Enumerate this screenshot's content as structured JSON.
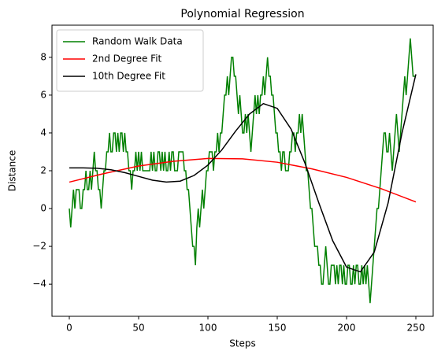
{
  "chart_data": {
    "type": "line",
    "title": "Polynomial Regression",
    "x_label": "Steps",
    "y_label": "Distance",
    "xlim": [
      -12.5,
      262.5
    ],
    "ylim": [
      -5.7,
      9.7
    ],
    "xticks": [
      0,
      50,
      100,
      150,
      200,
      250
    ],
    "yticks": [
      {
        "value": -4,
        "label": "−4"
      },
      {
        "value": -2,
        "label": "−2"
      },
      0,
      2,
      4,
      6,
      8
    ],
    "legend": "upper left",
    "series": [
      {
        "name": "Random Walk Data",
        "color": "#008000",
        "x": [
          0,
          1,
          2,
          3,
          4,
          5,
          6,
          7,
          8,
          9,
          10,
          11,
          12,
          13,
          14,
          15,
          16,
          17,
          18,
          19,
          20,
          21,
          22,
          23,
          24,
          25,
          26,
          27,
          28,
          29,
          30,
          31,
          32,
          33,
          34,
          35,
          36,
          37,
          38,
          39,
          40,
          41,
          42,
          43,
          44,
          45,
          46,
          47,
          48,
          49,
          50,
          51,
          52,
          53,
          54,
          55,
          56,
          57,
          58,
          59,
          60,
          61,
          62,
          63,
          64,
          65,
          66,
          67,
          68,
          69,
          70,
          71,
          72,
          73,
          74,
          75,
          76,
          77,
          78,
          79,
          80,
          81,
          82,
          83,
          84,
          85,
          86,
          87,
          88,
          89,
          90,
          91,
          92,
          93,
          94,
          95,
          96,
          97,
          98,
          99,
          100,
          101,
          102,
          103,
          104,
          105,
          106,
          107,
          108,
          109,
          110,
          111,
          112,
          113,
          114,
          115,
          116,
          117,
          118,
          119,
          120,
          121,
          122,
          123,
          124,
          125,
          126,
          127,
          128,
          129,
          130,
          131,
          132,
          133,
          134,
          135,
          136,
          137,
          138,
          139,
          140,
          141,
          142,
          143,
          144,
          145,
          146,
          147,
          148,
          149,
          150,
          151,
          152,
          153,
          154,
          155,
          156,
          157,
          158,
          159,
          160,
          161,
          162,
          163,
          164,
          165,
          166,
          167,
          168,
          169,
          170,
          171,
          172,
          173,
          174,
          175,
          176,
          177,
          178,
          179,
          180,
          181,
          182,
          183,
          184,
          185,
          186,
          187,
          188,
          189,
          190,
          191,
          192,
          193,
          194,
          195,
          196,
          197,
          198,
          199,
          200,
          201,
          202,
          203,
          204,
          205,
          206,
          207,
          208,
          209,
          210,
          211,
          212,
          213,
          214,
          215,
          216,
          217,
          218,
          219,
          220,
          221,
          222,
          223,
          224,
          225,
          226,
          227,
          228,
          229,
          230,
          231,
          232,
          233,
          234,
          235,
          236,
          237,
          238,
          239,
          240,
          241,
          242,
          243,
          244,
          245,
          246,
          247,
          248,
          249,
          250
        ],
        "values": [
          0,
          -1,
          0,
          1,
          0,
          1,
          1,
          1,
          0,
          0,
          1,
          1,
          2,
          1,
          1,
          2,
          1,
          2,
          3,
          2,
          2,
          1,
          1,
          0,
          1,
          2,
          2,
          3,
          3,
          4,
          3,
          3,
          4,
          4,
          3,
          4,
          3,
          4,
          4,
          3,
          4,
          3,
          3,
          2,
          2,
          1,
          2,
          2,
          3,
          2,
          3,
          2,
          3,
          2,
          2,
          2,
          2,
          2,
          2,
          3,
          2,
          3,
          2,
          2,
          3,
          3,
          2,
          3,
          2,
          3,
          2,
          2,
          3,
          2,
          3,
          3,
          2,
          2,
          2,
          3,
          3,
          3,
          3,
          2,
          2,
          1,
          1,
          0,
          -1,
          -2,
          -2,
          -3,
          -1,
          0,
          -1,
          0,
          1,
          0,
          1,
          2,
          2,
          3,
          3,
          3,
          2,
          3,
          3,
          4,
          3,
          4,
          4,
          5,
          6,
          6,
          7,
          6,
          7,
          8,
          8,
          7,
          7,
          6,
          5,
          6,
          5,
          4,
          4,
          5,
          4,
          5,
          4,
          3,
          4,
          5,
          6,
          5,
          6,
          5,
          6,
          6,
          7,
          6,
          7,
          8,
          7,
          7,
          6,
          6,
          5,
          4,
          4,
          3,
          3,
          2,
          3,
          3,
          2,
          2,
          2,
          3,
          3,
          4,
          4,
          3,
          4,
          4,
          5,
          4,
          5,
          4,
          3,
          2,
          2,
          1,
          0,
          0,
          -1,
          -2,
          -2,
          -2,
          -3,
          -3,
          -4,
          -4,
          -3,
          -2,
          -3,
          -4,
          -4,
          -3,
          -3,
          -3,
          -4,
          -3,
          -4,
          -3,
          -3,
          -4,
          -3,
          -4,
          -4,
          -3,
          -3,
          -4,
          -4,
          -3,
          -4,
          -3,
          -3,
          -4,
          -4,
          -3,
          -4,
          -3,
          -4,
          -3,
          -4,
          -5,
          -4,
          -3,
          -2,
          -1,
          0,
          0,
          1,
          2,
          3,
          4,
          4,
          3,
          3,
          4,
          3,
          2,
          3,
          4,
          5,
          4,
          3,
          4,
          5,
          6,
          7,
          6,
          7,
          8,
          9,
          8,
          7,
          7,
          7
        ]
      },
      {
        "name": "2nd Degree Fit",
        "color": "#ff0000",
        "x": [
          0,
          25,
          50,
          75,
          100,
          125,
          150,
          175,
          200,
          225,
          250
        ],
        "values": [
          1.4,
          1.85,
          2.25,
          2.5,
          2.65,
          2.63,
          2.45,
          2.1,
          1.65,
          1.05,
          0.35
        ]
      },
      {
        "name": "10th Degree Fit",
        "color": "#000000",
        "x": [
          0,
          10,
          20,
          30,
          40,
          50,
          60,
          70,
          80,
          90,
          100,
          110,
          120,
          130,
          140,
          150,
          160,
          170,
          180,
          190,
          200,
          210,
          220,
          230,
          240,
          250
        ],
        "values": [
          2.15,
          2.15,
          2.13,
          2.05,
          1.9,
          1.7,
          1.5,
          1.4,
          1.45,
          1.75,
          2.3,
          3.1,
          4.1,
          5.0,
          5.55,
          5.3,
          4.2,
          2.4,
          0.3,
          -1.7,
          -3.1,
          -3.35,
          -2.3,
          0.3,
          4.0,
          7.1
        ]
      }
    ]
  }
}
